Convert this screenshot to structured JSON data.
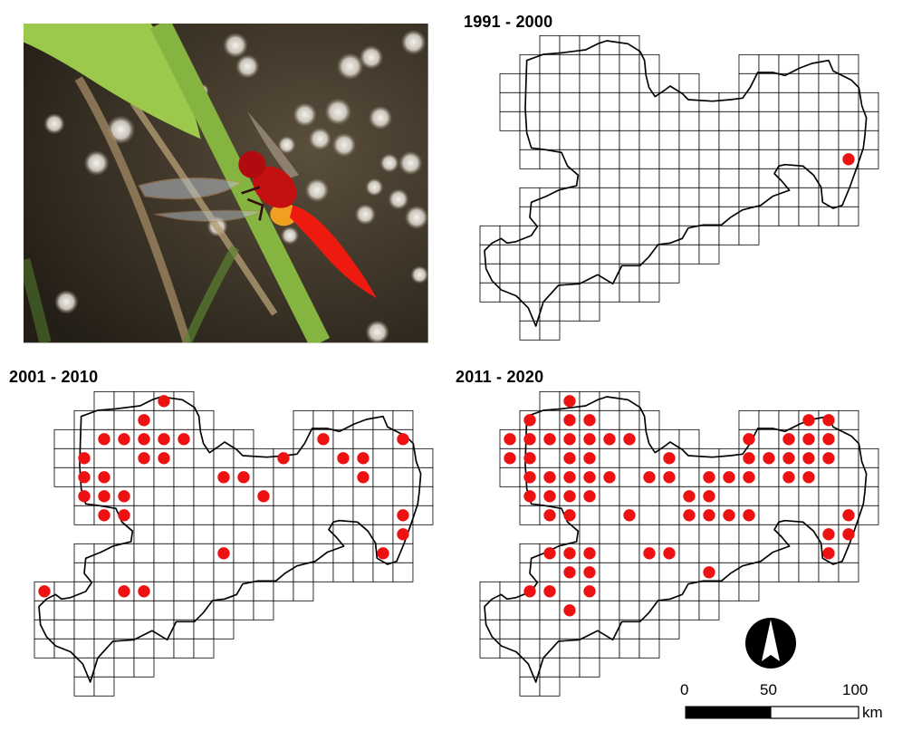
{
  "photo": {
    "subject": "red dragonfly on green reed stem",
    "icon": "dragonfly-photo"
  },
  "maps": [
    {
      "period": "1991 - 2000",
      "dots": [
        [
          18,
          6
        ]
      ]
    },
    {
      "period": "2001 - 2010",
      "dots": [
        [
          6,
          0
        ],
        [
          5,
          1
        ],
        [
          3,
          2
        ],
        [
          4,
          2
        ],
        [
          5,
          2
        ],
        [
          6,
          2
        ],
        [
          7,
          2
        ],
        [
          2,
          3
        ],
        [
          5,
          3
        ],
        [
          6,
          3
        ],
        [
          2,
          4
        ],
        [
          3,
          4
        ],
        [
          2,
          5
        ],
        [
          3,
          5
        ],
        [
          4,
          5
        ],
        [
          3,
          6
        ],
        [
          4,
          6
        ],
        [
          9,
          4
        ],
        [
          10,
          4
        ],
        [
          11,
          5
        ],
        [
          12,
          3
        ],
        [
          14,
          2
        ],
        [
          18,
          2
        ],
        [
          15,
          3
        ],
        [
          16,
          3
        ],
        [
          16,
          4
        ],
        [
          18,
          6
        ],
        [
          18,
          7
        ],
        [
          17,
          8
        ],
        [
          9,
          8
        ],
        [
          0,
          10
        ],
        [
          4,
          10
        ],
        [
          5,
          10
        ]
      ]
    },
    {
      "period": "2011 - 2020",
      "dots": [
        [
          4,
          0
        ],
        [
          2,
          1
        ],
        [
          4,
          1
        ],
        [
          5,
          1
        ],
        [
          1,
          2
        ],
        [
          2,
          2
        ],
        [
          3,
          2
        ],
        [
          4,
          2
        ],
        [
          5,
          2
        ],
        [
          6,
          2
        ],
        [
          7,
          2
        ],
        [
          1,
          3
        ],
        [
          2,
          3
        ],
        [
          4,
          3
        ],
        [
          5,
          3
        ],
        [
          2,
          4
        ],
        [
          3,
          4
        ],
        [
          4,
          4
        ],
        [
          5,
          4
        ],
        [
          6,
          4
        ],
        [
          8,
          4
        ],
        [
          9,
          4
        ],
        [
          9,
          3
        ],
        [
          2,
          5
        ],
        [
          3,
          5
        ],
        [
          4,
          5
        ],
        [
          5,
          5
        ],
        [
          3,
          6
        ],
        [
          4,
          6
        ],
        [
          7,
          6
        ],
        [
          10,
          5
        ],
        [
          11,
          5
        ],
        [
          10,
          6
        ],
        [
          11,
          6
        ],
        [
          12,
          6
        ],
        [
          13,
          6
        ],
        [
          11,
          4
        ],
        [
          12,
          4
        ],
        [
          13,
          4
        ],
        [
          13,
          3
        ],
        [
          14,
          3
        ],
        [
          15,
          3
        ],
        [
          16,
          3
        ],
        [
          17,
          3
        ],
        [
          13,
          2
        ],
        [
          15,
          2
        ],
        [
          16,
          2
        ],
        [
          17,
          2
        ],
        [
          16,
          1
        ],
        [
          17,
          1
        ],
        [
          15,
          4
        ],
        [
          16,
          4
        ],
        [
          18,
          6
        ],
        [
          17,
          7
        ],
        [
          18,
          7
        ],
        [
          17,
          8
        ],
        [
          3,
          8
        ],
        [
          4,
          8
        ],
        [
          5,
          8
        ],
        [
          4,
          9
        ],
        [
          5,
          9
        ],
        [
          8,
          8
        ],
        [
          9,
          8
        ],
        [
          11,
          9
        ],
        [
          2,
          10
        ],
        [
          3,
          10
        ],
        [
          5,
          10
        ],
        [
          4,
          11
        ]
      ]
    }
  ],
  "legend": {
    "north_arrow_icon": "north-arrow-icon",
    "scale_labels": [
      "0",
      "50",
      "100"
    ],
    "scale_unit": "km"
  },
  "colors": {
    "dot": "#ee1111",
    "grid": "#000000",
    "outline": "#000000"
  }
}
